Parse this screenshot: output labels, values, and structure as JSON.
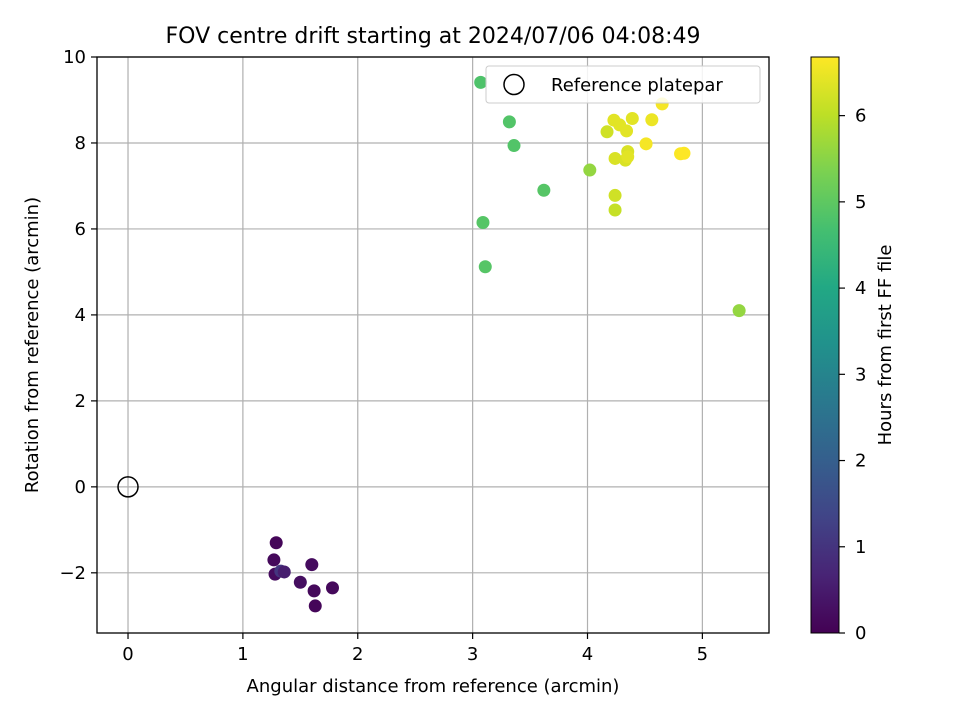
{
  "chart_data": {
    "type": "scatter",
    "title": "FOV centre drift starting at 2024/07/06 04:08:49",
    "xlabel": "Angular distance from reference (arcmin)",
    "ylabel": "Rotation from reference (arcmin)",
    "xlim": [
      -0.27,
      5.58
    ],
    "ylim": [
      -3.4,
      10
    ],
    "xticks": [
      0,
      1,
      2,
      3,
      4,
      5
    ],
    "yticks": [
      -2,
      0,
      2,
      4,
      6,
      8,
      10
    ],
    "grid": true,
    "legend": {
      "placement": "top-right",
      "entries": [
        "Reference platepar"
      ]
    },
    "reference_point": {
      "x": 0,
      "y": 0,
      "label": "Reference platepar"
    },
    "colorbar": {
      "label": "Hours from first FF file",
      "range": [
        0,
        6.68
      ],
      "ticks": [
        0,
        1,
        2,
        3,
        4,
        5,
        6
      ],
      "colormap": "viridis"
    },
    "points": [
      {
        "x": 1.29,
        "y": -1.3,
        "c": 0.1
      },
      {
        "x": 1.27,
        "y": -1.7,
        "c": 0.15
      },
      {
        "x": 1.28,
        "y": -2.03,
        "c": 0.2
      },
      {
        "x": 1.33,
        "y": -1.96,
        "c": 1.05
      },
      {
        "x": 1.36,
        "y": -1.98,
        "c": 0.55
      },
      {
        "x": 1.5,
        "y": -2.22,
        "c": 0.25
      },
      {
        "x": 1.6,
        "y": -1.81,
        "c": 0.2
      },
      {
        "x": 1.62,
        "y": -2.42,
        "c": 0.15
      },
      {
        "x": 1.63,
        "y": -2.77,
        "c": 0.1
      },
      {
        "x": 1.78,
        "y": -2.35,
        "c": 0.15
      },
      {
        "x": 3.07,
        "y": 9.41,
        "c": 4.8
      },
      {
        "x": 3.32,
        "y": 8.49,
        "c": 4.85
      },
      {
        "x": 3.36,
        "y": 7.94,
        "c": 4.85
      },
      {
        "x": 3.62,
        "y": 6.9,
        "c": 4.9
      },
      {
        "x": 3.09,
        "y": 6.15,
        "c": 4.9
      },
      {
        "x": 3.11,
        "y": 5.12,
        "c": 4.9
      },
      {
        "x": 4.02,
        "y": 7.37,
        "c": 5.6
      },
      {
        "x": 4.17,
        "y": 8.26,
        "c": 6.2
      },
      {
        "x": 4.23,
        "y": 8.53,
        "c": 6.4
      },
      {
        "x": 4.28,
        "y": 8.42,
        "c": 6.4
      },
      {
        "x": 4.34,
        "y": 8.28,
        "c": 6.4
      },
      {
        "x": 4.39,
        "y": 8.57,
        "c": 6.4
      },
      {
        "x": 4.24,
        "y": 7.64,
        "c": 6.3
      },
      {
        "x": 4.33,
        "y": 7.6,
        "c": 6.3
      },
      {
        "x": 4.35,
        "y": 7.8,
        "c": 6.3
      },
      {
        "x": 4.35,
        "y": 7.68,
        "c": 6.4
      },
      {
        "x": 4.24,
        "y": 6.78,
        "c": 6.2
      },
      {
        "x": 4.24,
        "y": 6.44,
        "c": 6.1
      },
      {
        "x": 4.51,
        "y": 7.98,
        "c": 6.6
      },
      {
        "x": 4.56,
        "y": 8.54,
        "c": 6.5
      },
      {
        "x": 4.65,
        "y": 8.91,
        "c": 6.6
      },
      {
        "x": 4.81,
        "y": 7.75,
        "c": 6.65
      },
      {
        "x": 4.84,
        "y": 7.76,
        "c": 6.68
      },
      {
        "x": 5.32,
        "y": 4.1,
        "c": 5.6
      }
    ]
  }
}
